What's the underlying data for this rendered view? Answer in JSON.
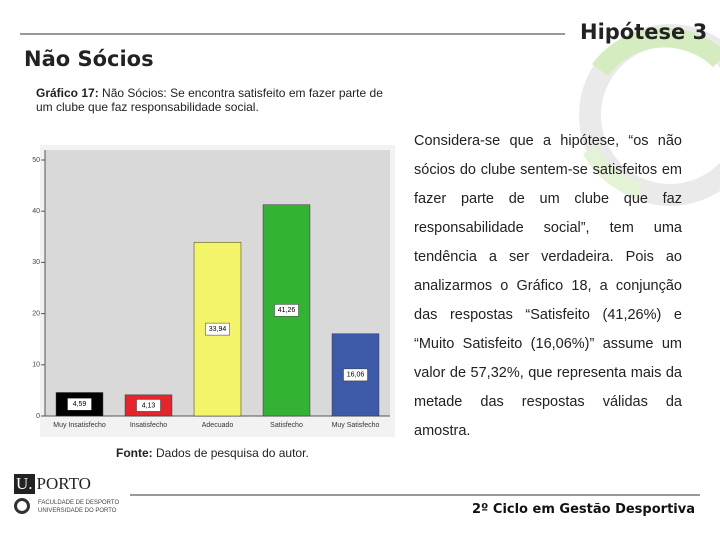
{
  "header": {
    "title": "Hipótese 3",
    "subtitle": "Não Sócios"
  },
  "caption": {
    "label": "Gráfico 17:",
    "text": "Não Sócios: Se encontra satisfeito em fazer parte de um clube que faz responsabilidade social."
  },
  "chart_data": {
    "type": "bar",
    "categories": [
      "Muy Insatisfecho",
      "Insatisfecho",
      "Adecuado",
      "Satisfecho",
      "Muy Satisfecho"
    ],
    "values": [
      4.59,
      4.13,
      33.94,
      41.26,
      16.06
    ],
    "value_labels": [
      "4,59",
      "4,13",
      "33,94",
      "41,26",
      "16,06"
    ],
    "colors": [
      "#000000",
      "#e2262b",
      "#f4f46a",
      "#34b234",
      "#3d5aa8"
    ],
    "ylim": [
      0,
      50
    ],
    "yticks": [
      0,
      10,
      20,
      30,
      40,
      50
    ]
  },
  "body": "Considera-se que a hipótese, “os não sócios do clube sentem-se satisfeitos em fazer parte de um clube que faz responsabilidade social”, tem uma tendência a ser verdadeira. Pois ao analizarmos o Gráfico 18, a conjunção das respostas “Satisfeito (41,26%) e “Muito Satisfeito (16,06%)” assume um valor de 57,32%, que representa mais da metade das respostas válidas da amostra.",
  "source": {
    "label": "Fonte:",
    "text": "Dados de pesquisa do autor."
  },
  "logo": {
    "mark": "U.",
    "name": "PORTO",
    "line1": "FACULDADE DE DESPORTO",
    "line2": "UNIVERSIDADE DO PORTO"
  },
  "footer": "2º Ciclo em Gestão Desportiva"
}
